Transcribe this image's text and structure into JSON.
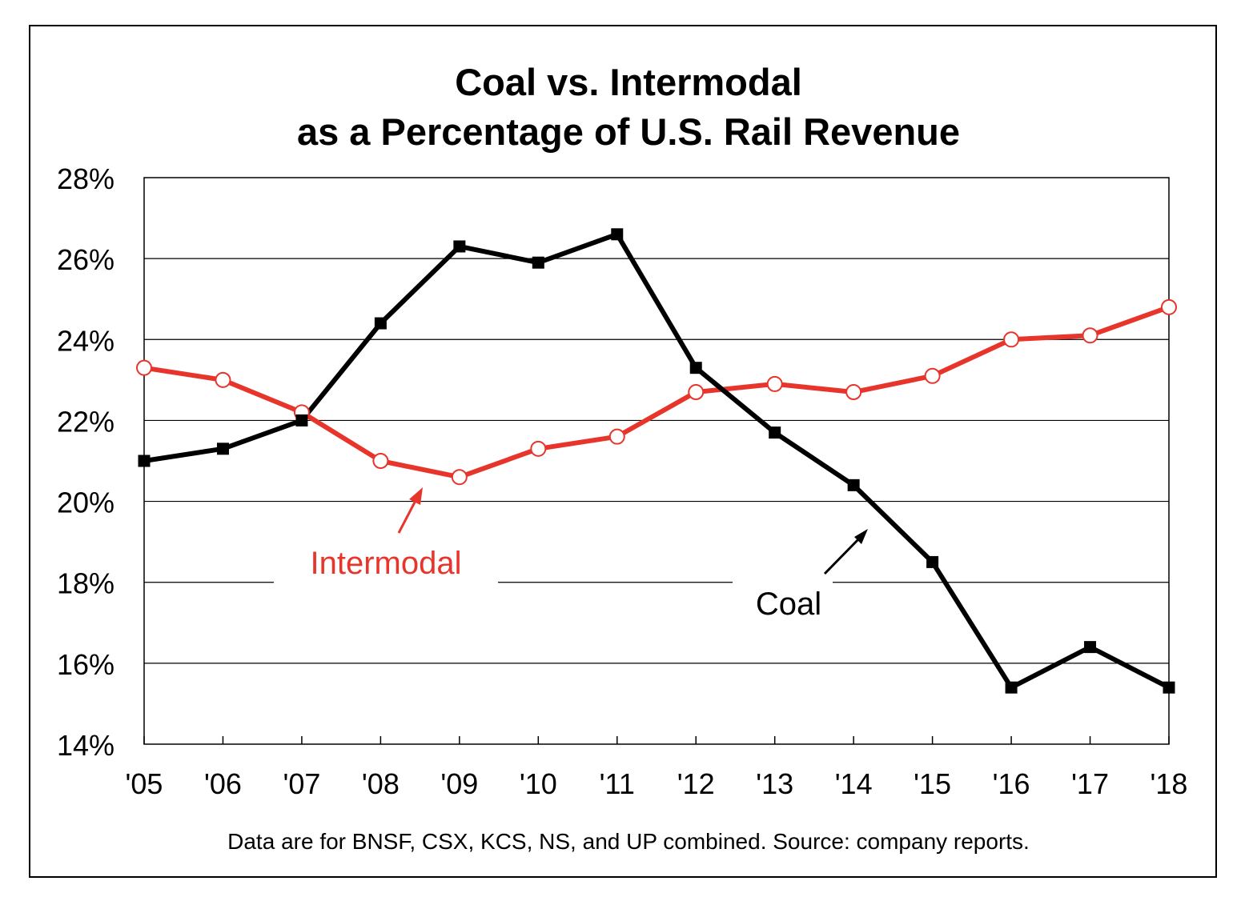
{
  "chart_data": {
    "type": "line",
    "title": [
      "Coal vs. Intermodal",
      "as a Percentage of U.S. Rail Revenue"
    ],
    "footnote": "Data are for BNSF, CSX, KCS, NS, and UP combined.  Source: company reports.",
    "categories": [
      "'05",
      "'06",
      "'07",
      "'08",
      "'09",
      "'10",
      "'11",
      "'12",
      "'13",
      "'14",
      "'15",
      "'16",
      "'17",
      "'18"
    ],
    "ylim": [
      14,
      28
    ],
    "yticks": [
      14,
      16,
      18,
      20,
      22,
      24,
      26,
      28
    ],
    "ytick_labels": [
      "14%",
      "16%",
      "18%",
      "20%",
      "22%",
      "24%",
      "26%",
      "28%"
    ],
    "grid": true,
    "series": [
      {
        "name": "Coal",
        "color": "#000000",
        "marker": "filled-square",
        "values": [
          21.0,
          21.3,
          22.0,
          24.4,
          26.3,
          25.9,
          26.6,
          23.3,
          21.7,
          20.4,
          18.5,
          15.4,
          16.4,
          15.4
        ]
      },
      {
        "name": "Intermodal",
        "color": "#e8352b",
        "marker": "open-circle",
        "values": [
          23.3,
          23.0,
          22.2,
          21.0,
          20.6,
          21.3,
          21.6,
          22.7,
          22.9,
          22.7,
          23.1,
          24.0,
          24.1,
          24.8
        ]
      }
    ],
    "annotations": [
      {
        "text": "Intermodal",
        "series": "Intermodal",
        "color": "#e8352b"
      },
      {
        "text": "Coal",
        "series": "Coal",
        "color": "#000000"
      }
    ]
  }
}
